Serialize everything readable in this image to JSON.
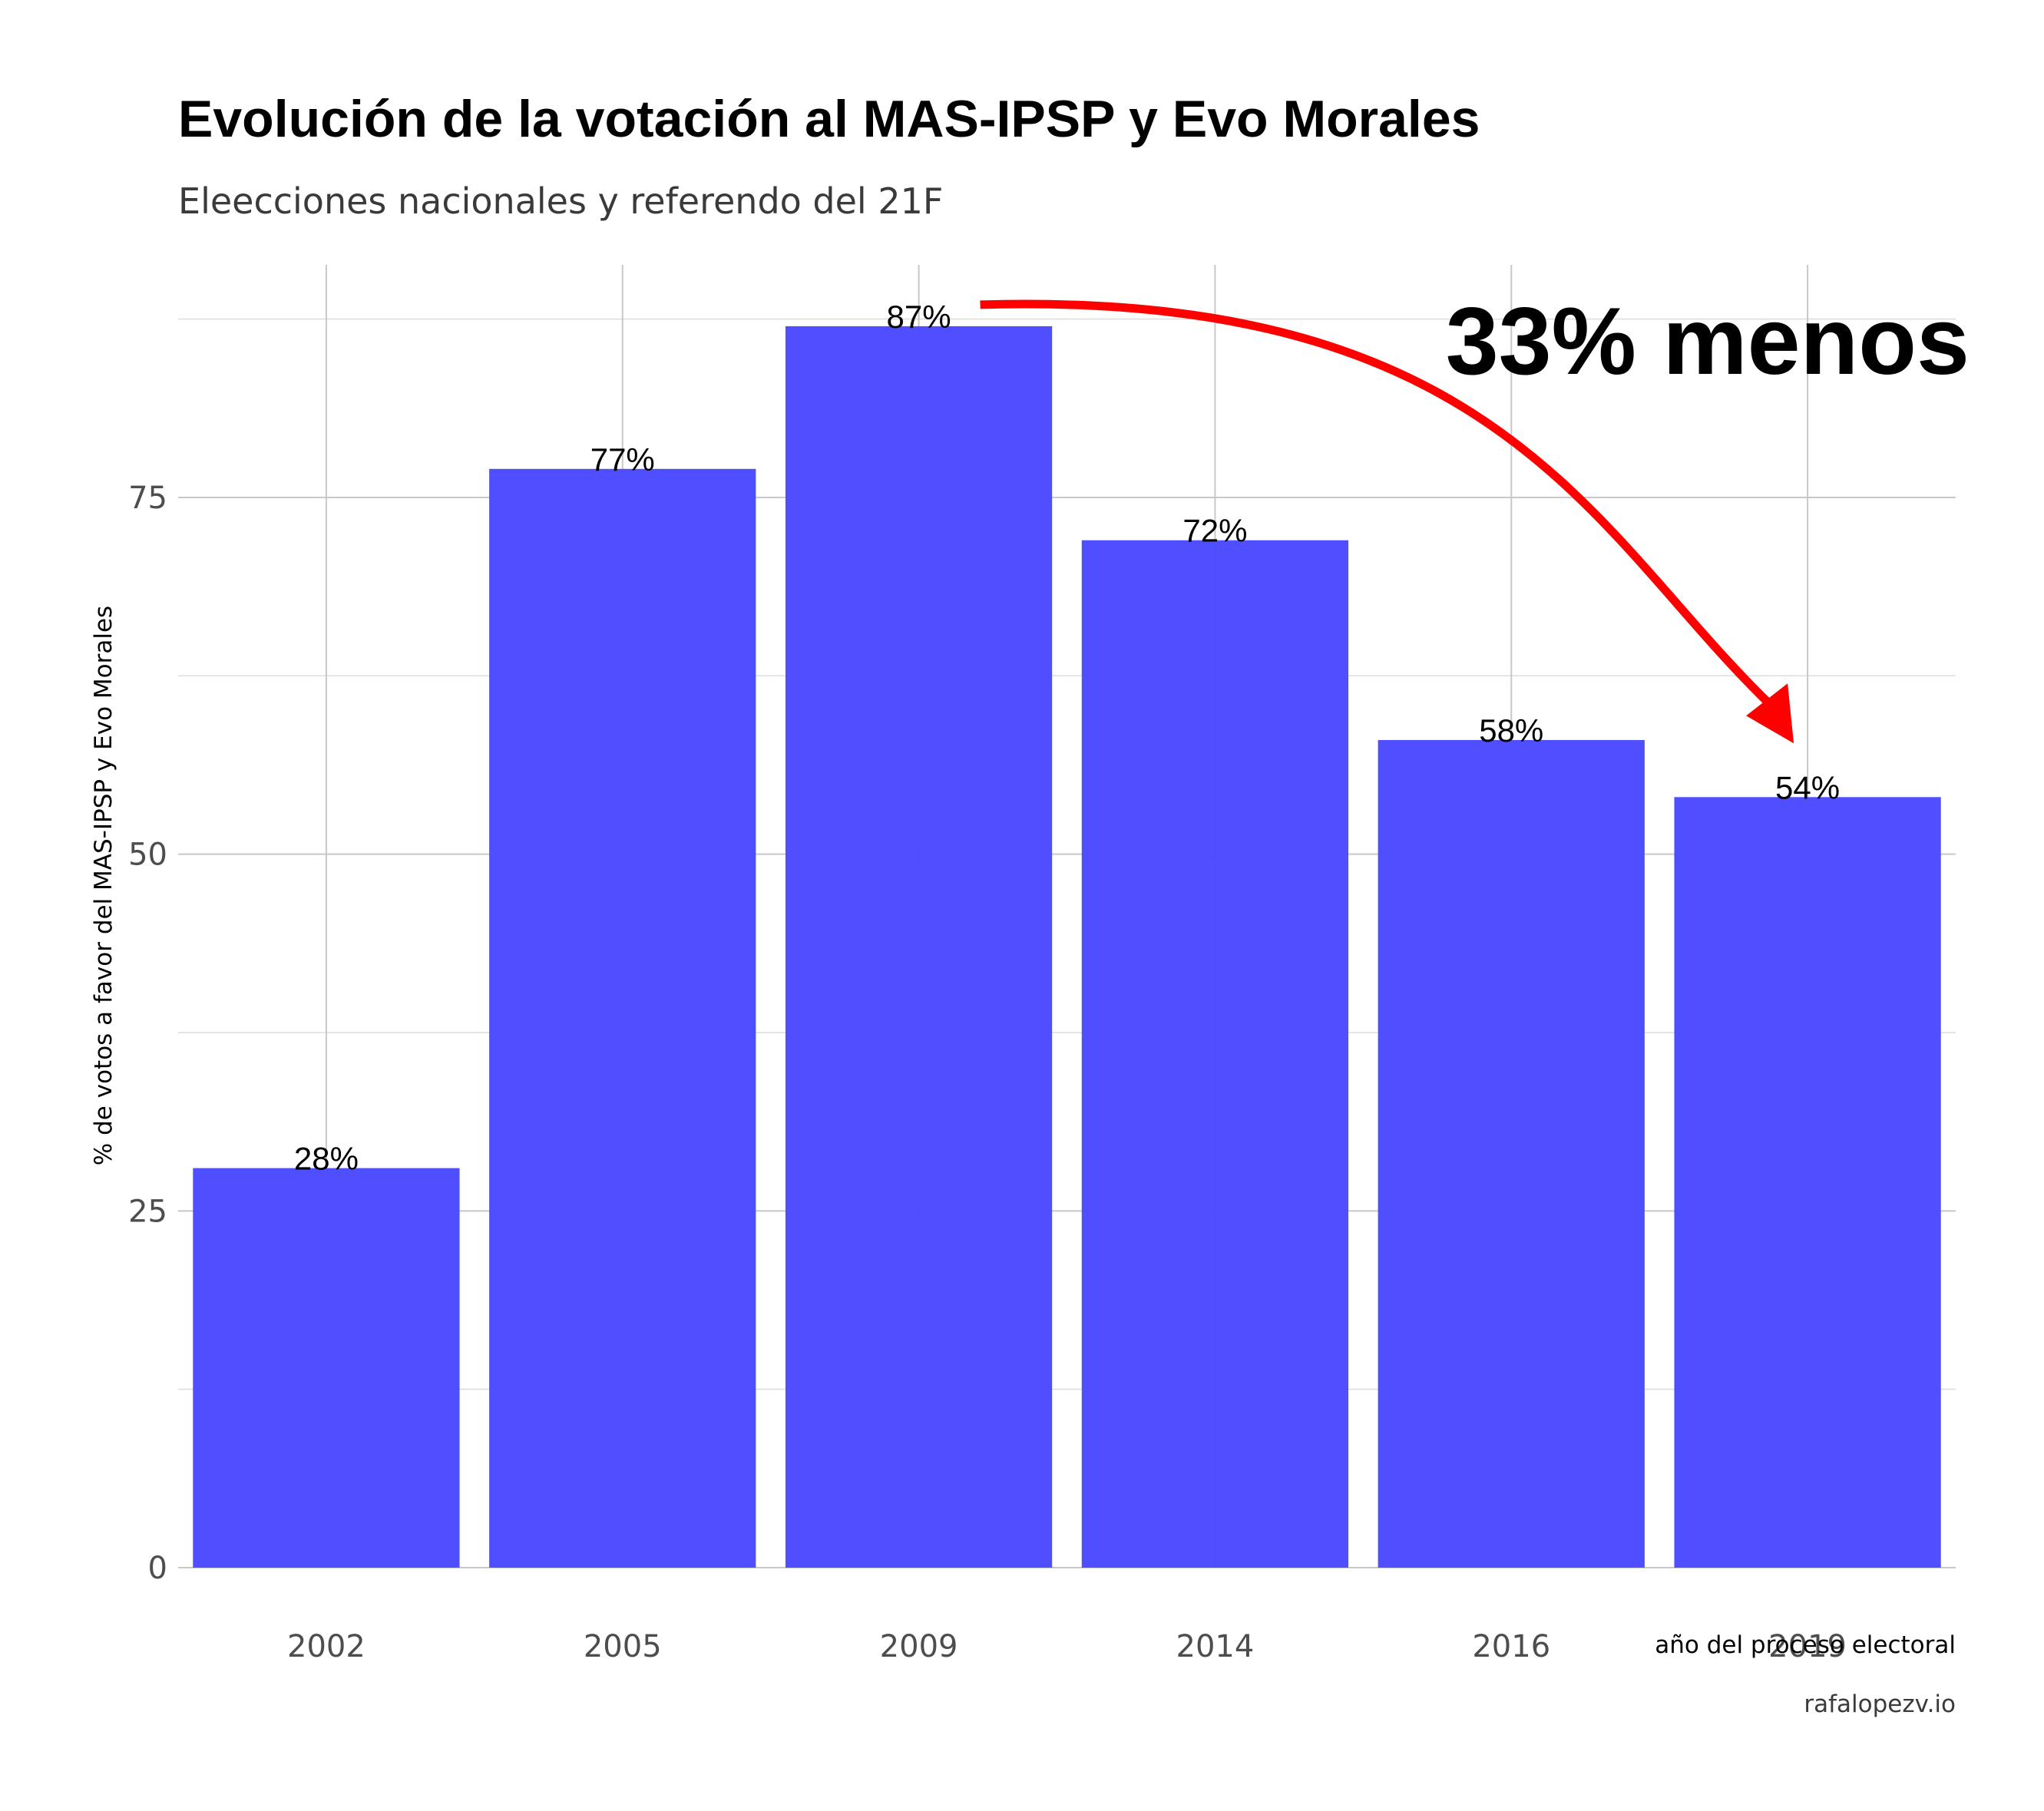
{
  "chart_data": {
    "type": "bar",
    "title": "Evolución de la votación al MAS-IPSP y Evo Morales",
    "subtitle": "Eleecciones nacionales y referendo del 21F",
    "xlabel": "año del proceso electoral",
    "ylabel": "% de votos a favor del MAS-IPSP y Evo Morales",
    "caption": "rafalopezv.io",
    "categories": [
      "2002",
      "2005",
      "2009",
      "2014",
      "2016",
      "2019"
    ],
    "values": [
      28,
      77,
      87,
      72,
      58,
      54
    ],
    "data_labels": [
      "28%",
      "77%",
      "87%",
      "72%",
      "58%",
      "54%"
    ],
    "yticks": [
      0,
      25,
      50,
      75
    ],
    "ylim": [
      0,
      91.3
    ],
    "grid": true,
    "bar_color": "#4b4bff",
    "annotation": {
      "text": "33% menos",
      "color": "#ff0000",
      "arrow_from": "2009",
      "arrow_to": "2019"
    }
  }
}
